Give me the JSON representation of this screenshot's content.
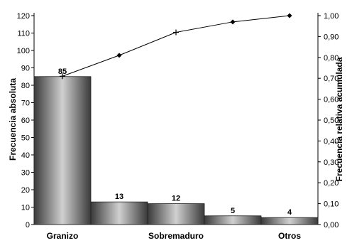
{
  "chart_data": {
    "type": "bar",
    "categories": [
      "Granizo",
      "",
      "Sobremaduro",
      "",
      "Otros"
    ],
    "category_labels_shown": [
      "Granizo",
      "Sobremaduro",
      "Otros"
    ],
    "values": [
      85,
      13,
      12,
      5,
      4
    ],
    "data_labels": [
      "85",
      "13",
      "12",
      "5",
      "4"
    ],
    "cumulative_relative": [
      0.71,
      0.81,
      0.92,
      0.97,
      1.0
    ],
    "ylabel": "Frecuencia absoluta",
    "y2label": "Frecuencia relativa acumulada",
    "ylim": [
      0,
      120
    ],
    "y2lim": [
      0,
      1.0
    ],
    "yticks": [
      "0",
      "10",
      "20",
      "30",
      "40",
      "50",
      "60",
      "70",
      "80",
      "90",
      "100",
      "110",
      "120"
    ],
    "y2ticks": [
      "0,00",
      "0,10",
      "0,20",
      "0,30",
      "0,40",
      "0,50",
      "0,60",
      "0,70",
      "0,80",
      "0,90",
      "1,00"
    ],
    "grid": false,
    "bar_gradient": [
      "#3a3a3a",
      "#d0d0d0",
      "#3a3a3a"
    ],
    "line_color": "#000000"
  }
}
